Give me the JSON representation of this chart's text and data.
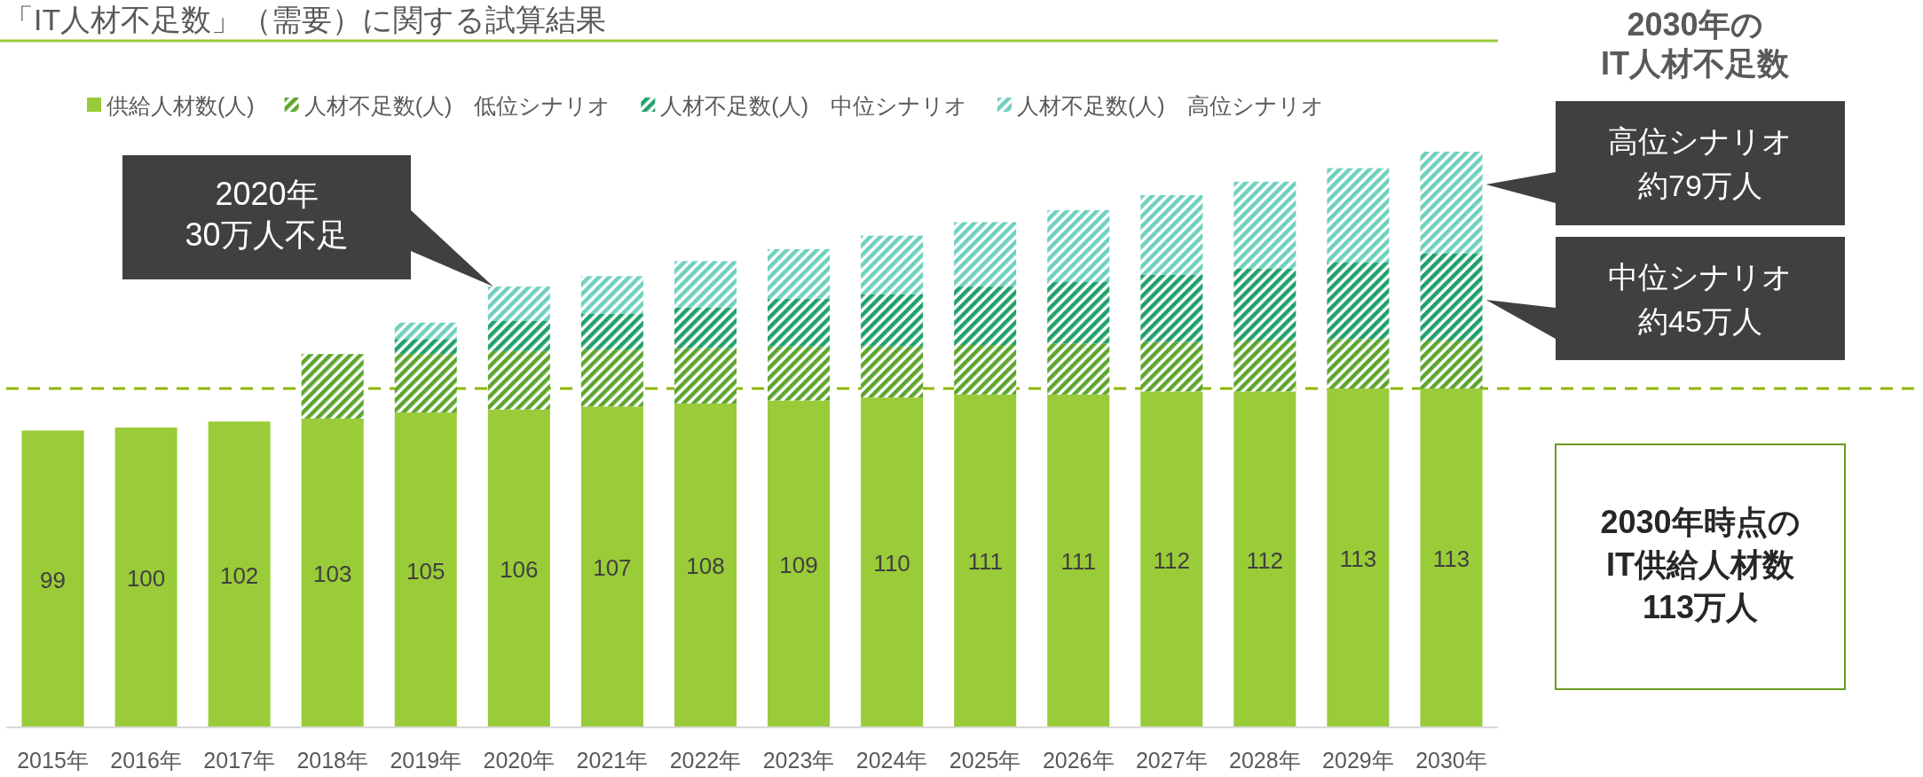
{
  "chart_data": {
    "type": "bar",
    "stacked": true,
    "title": "「IT人材不足数」（需要）に関する試算結果",
    "categories": [
      "2015年",
      "2016年",
      "2017年",
      "2018年",
      "2019年",
      "2020年",
      "2021年",
      "2022年",
      "2023年",
      "2024年",
      "2025年",
      "2026年",
      "2027年",
      "2028年",
      "2029年",
      "2030年"
    ],
    "series": [
      {
        "name": "供給人材数(人)",
        "color": "#9acb38",
        "values": [
          99,
          100,
          102,
          103,
          105,
          106,
          107,
          108,
          109,
          110,
          111,
          111,
          112,
          112,
          113,
          113
        ],
        "value_labels": [
          "99",
          "100",
          "102",
          "103",
          "105",
          "106",
          "107",
          "108",
          "109",
          "110",
          "111",
          "111",
          "112",
          "112",
          "113",
          "113"
        ]
      },
      {
        "name": "人材不足数(人)　低位シナリオ",
        "color": "#5ea52e",
        "values": [
          null,
          null,
          null,
          21.5,
          19.5,
          19.5,
          19,
          18.5,
          18,
          17,
          16.5,
          17,
          16.5,
          17,
          16.5,
          16
        ]
      },
      {
        "name": "人材不足数(人)　中位シナリオ",
        "color": "#22a06b",
        "values": [
          null,
          null,
          null,
          null,
          5,
          10,
          12,
          13.5,
          16,
          17.5,
          19.5,
          20.5,
          22.5,
          24,
          25.5,
          29
        ]
      },
      {
        "name": "人材不足数(人)　高位シナリオ",
        "color": "#6fd0bd",
        "values": [
          null,
          null,
          null,
          null,
          5.5,
          11.5,
          12.5,
          15.5,
          16.5,
          19.5,
          21.5,
          24,
          26.5,
          29,
          31.5,
          34
        ]
      }
    ],
    "legend": "top",
    "ref_lines": [
      {
        "axis": "y",
        "value": 113,
        "color": "#8db600",
        "line_style": "dashed"
      }
    ],
    "annotations": [
      "2020年\n30万人不足",
      "2030年の\nIT人材不足数",
      "高位シナリオ約79万人",
      "中位シナリオ約45万人",
      "2030年時点の\nIT供給人材数\n113万人"
    ]
  }
}
